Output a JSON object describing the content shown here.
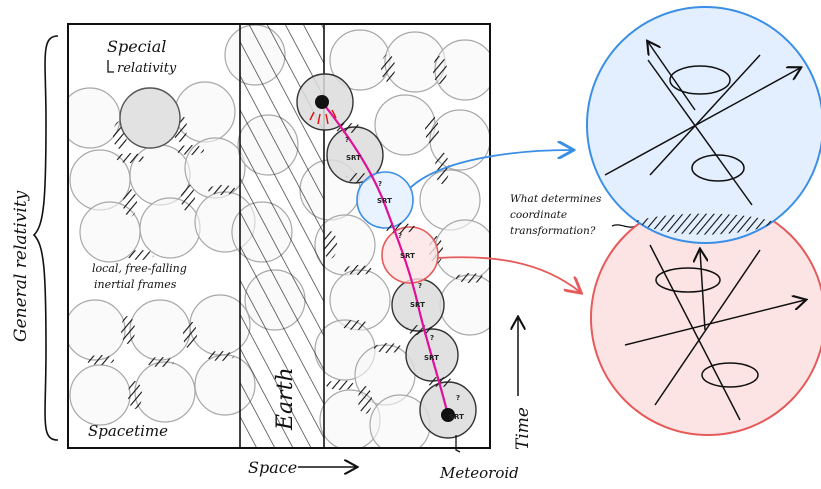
{
  "labels": {
    "special_relativity_line1": "Special",
    "special_relativity_line2": "relativity",
    "local_frames_line1": "local, free-falling",
    "local_frames_line2": "inertial frames",
    "spacetime": "Spacetime",
    "earth": "Earth",
    "general_relativity": "General relativity",
    "space_axis": "Space",
    "time_axis": "Time",
    "meteoroid": "Meteoroid",
    "question_line1": "What determines",
    "question_line2": "coordinate",
    "question_line3": "transformation?",
    "srt": "SRT",
    "q_mark": "?"
  },
  "colors": {
    "blue_frame": "#3a8ee6",
    "blue_fill": "#e3efff",
    "red_frame": "#e65a5a",
    "red_fill": "#fde4e4",
    "worldline": "#e0109a",
    "circle_fill": "#e6e6e6",
    "ink": "#111111"
  }
}
